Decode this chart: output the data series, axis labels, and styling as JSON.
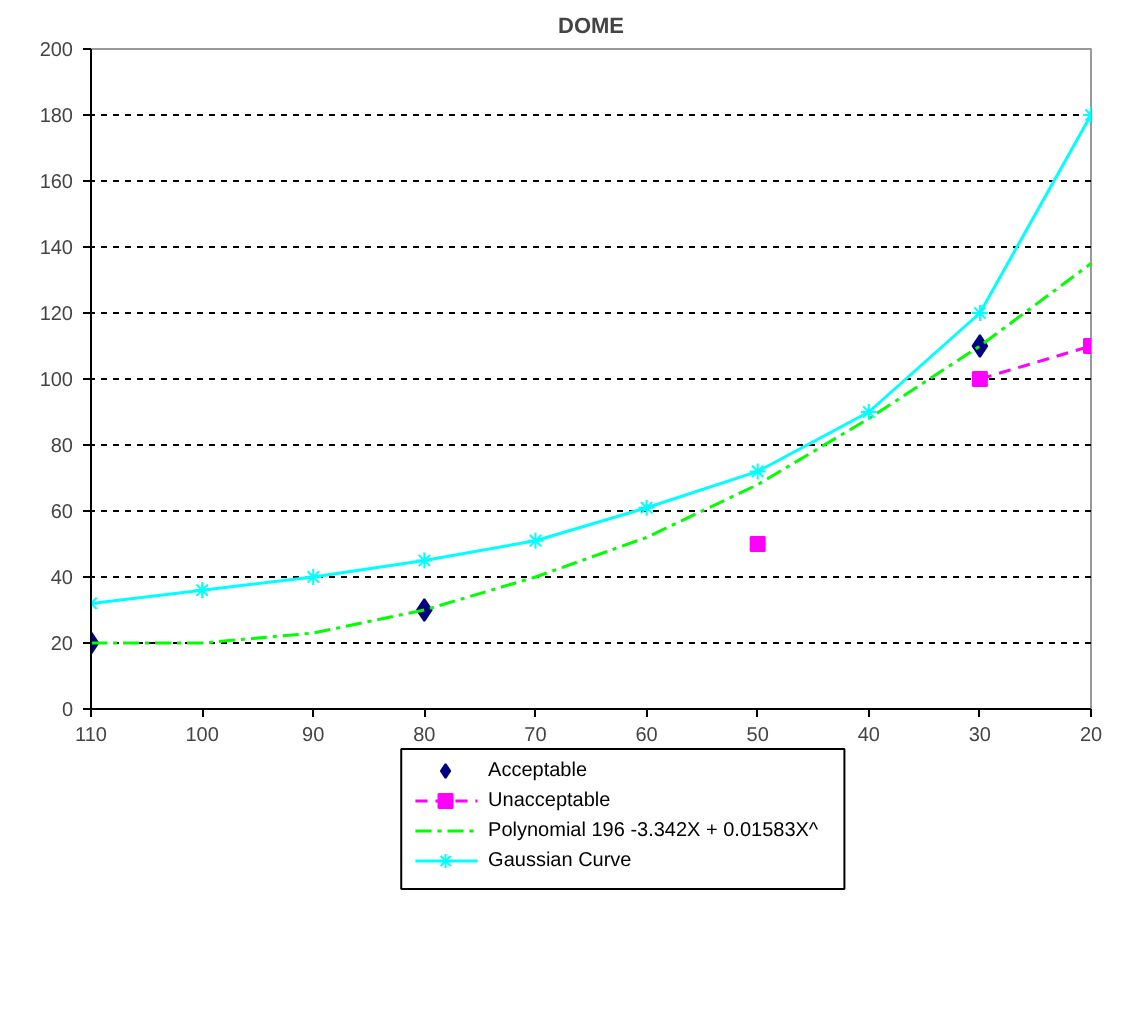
{
  "chart_data": {
    "type": "line",
    "title": "DOME",
    "xlim": [
      110,
      20
    ],
    "xticks": [
      110,
      100,
      90,
      80,
      70,
      60,
      50,
      40,
      30,
      20
    ],
    "ylim": [
      0,
      200
    ],
    "yticks": [
      0,
      20,
      40,
      60,
      80,
      100,
      120,
      140,
      160,
      180,
      200
    ],
    "grid": "y",
    "legend": "bottom",
    "series": [
      {
        "name": "Acceptable",
        "type": "scatter",
        "color": "#000080",
        "marker": "diamond",
        "x": [
          110,
          80,
          30
        ],
        "values": [
          20,
          30,
          110
        ]
      },
      {
        "name": "Unacceptable",
        "type": "line",
        "color": "#ff00ff",
        "marker": "square",
        "line_style": "dashed",
        "x": [
          50,
          40,
          30,
          20
        ],
        "values": [
          50,
          null,
          100,
          110
        ]
      },
      {
        "name": "Polynomial 196 -3.342X + 0.01583X^",
        "type": "line",
        "color": "#00ff00",
        "marker": "none",
        "line_style": "dashdot",
        "x": [
          110,
          100,
          90,
          80,
          70,
          60,
          50,
          40,
          30,
          20
        ],
        "values": [
          20,
          20,
          23,
          30,
          40,
          52,
          68,
          88,
          110,
          135
        ]
      },
      {
        "name": "Gaussian Curve",
        "type": "line",
        "color": "#00ffff",
        "marker": "cross",
        "line_style": "solid",
        "x": [
          110,
          100,
          90,
          80,
          70,
          60,
          50,
          40,
          30,
          20
        ],
        "values": [
          32,
          36,
          40,
          45,
          51,
          61,
          72,
          90,
          120,
          180
        ]
      }
    ]
  }
}
